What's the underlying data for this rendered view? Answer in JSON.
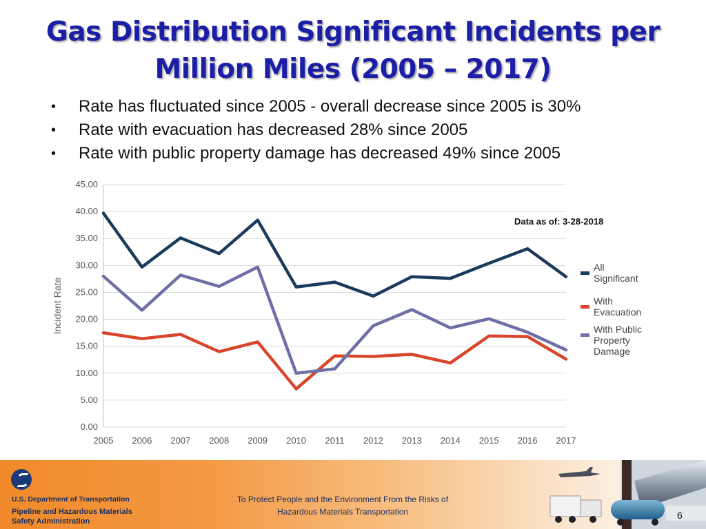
{
  "slide": {
    "title_line1": "Gas Distribution Significant Incidents per",
    "title_line2": "Million Miles (2005 – 2017)",
    "bullets": [
      "Rate has fluctuated since 2005 - overall decrease since 2005 is 30%",
      "Rate with evacuation has decreased 28% since 2005",
      "Rate with public property damage has decreased 49% since 2005"
    ],
    "bullet_symbol": "•",
    "slide_number": "6"
  },
  "footer": {
    "dept": "U.S. Department of Transportation",
    "agency_line1": "Pipeline and Hazardous Materials",
    "agency_line2": "Safety Administration",
    "tagline_line1": "To Protect People and the Environment From the Risks of",
    "tagline_line2": "Hazardous Materials Transportation"
  },
  "chart_data": {
    "type": "line",
    "title": "",
    "xlabel": "",
    "ylabel": "Incident Rate",
    "annotation": "Data as of: 3-28-2018",
    "ylim": [
      0,
      45
    ],
    "yticks": [
      "0.00",
      "5.00",
      "10.00",
      "15.00",
      "20.00",
      "25.00",
      "30.00",
      "35.00",
      "40.00",
      "45.00"
    ],
    "x": [
      "2005",
      "2006",
      "2007",
      "2008",
      "2009",
      "2010",
      "2011",
      "2012",
      "2013",
      "2014",
      "2015",
      "2016",
      "2017"
    ],
    "grid": true,
    "legend_position": "right",
    "series": [
      {
        "name": "All Significant",
        "legend_lines": [
          "All",
          "Significant"
        ],
        "color": "#1b3a5c",
        "values": [
          39.7,
          29.7,
          35.1,
          32.2,
          38.4,
          26.0,
          26.9,
          24.3,
          27.9,
          27.6,
          30.4,
          33.1,
          27.9
        ]
      },
      {
        "name": "With Evacuation",
        "legend_lines": [
          "With",
          "Evacuation"
        ],
        "color": "#d8452b",
        "values": [
          17.5,
          16.4,
          17.2,
          14.0,
          15.8,
          7.1,
          13.2,
          13.1,
          13.5,
          11.9,
          16.9,
          16.8,
          12.6
        ]
      },
      {
        "name": "With Public Property Damage",
        "legend_lines": [
          "With Public",
          "Property",
          "Damage"
        ],
        "color": "#6e6fa6",
        "values": [
          28.0,
          21.7,
          28.2,
          26.1,
          29.7,
          10.0,
          10.8,
          18.8,
          21.8,
          18.4,
          20.1,
          17.6,
          14.3
        ]
      }
    ]
  }
}
